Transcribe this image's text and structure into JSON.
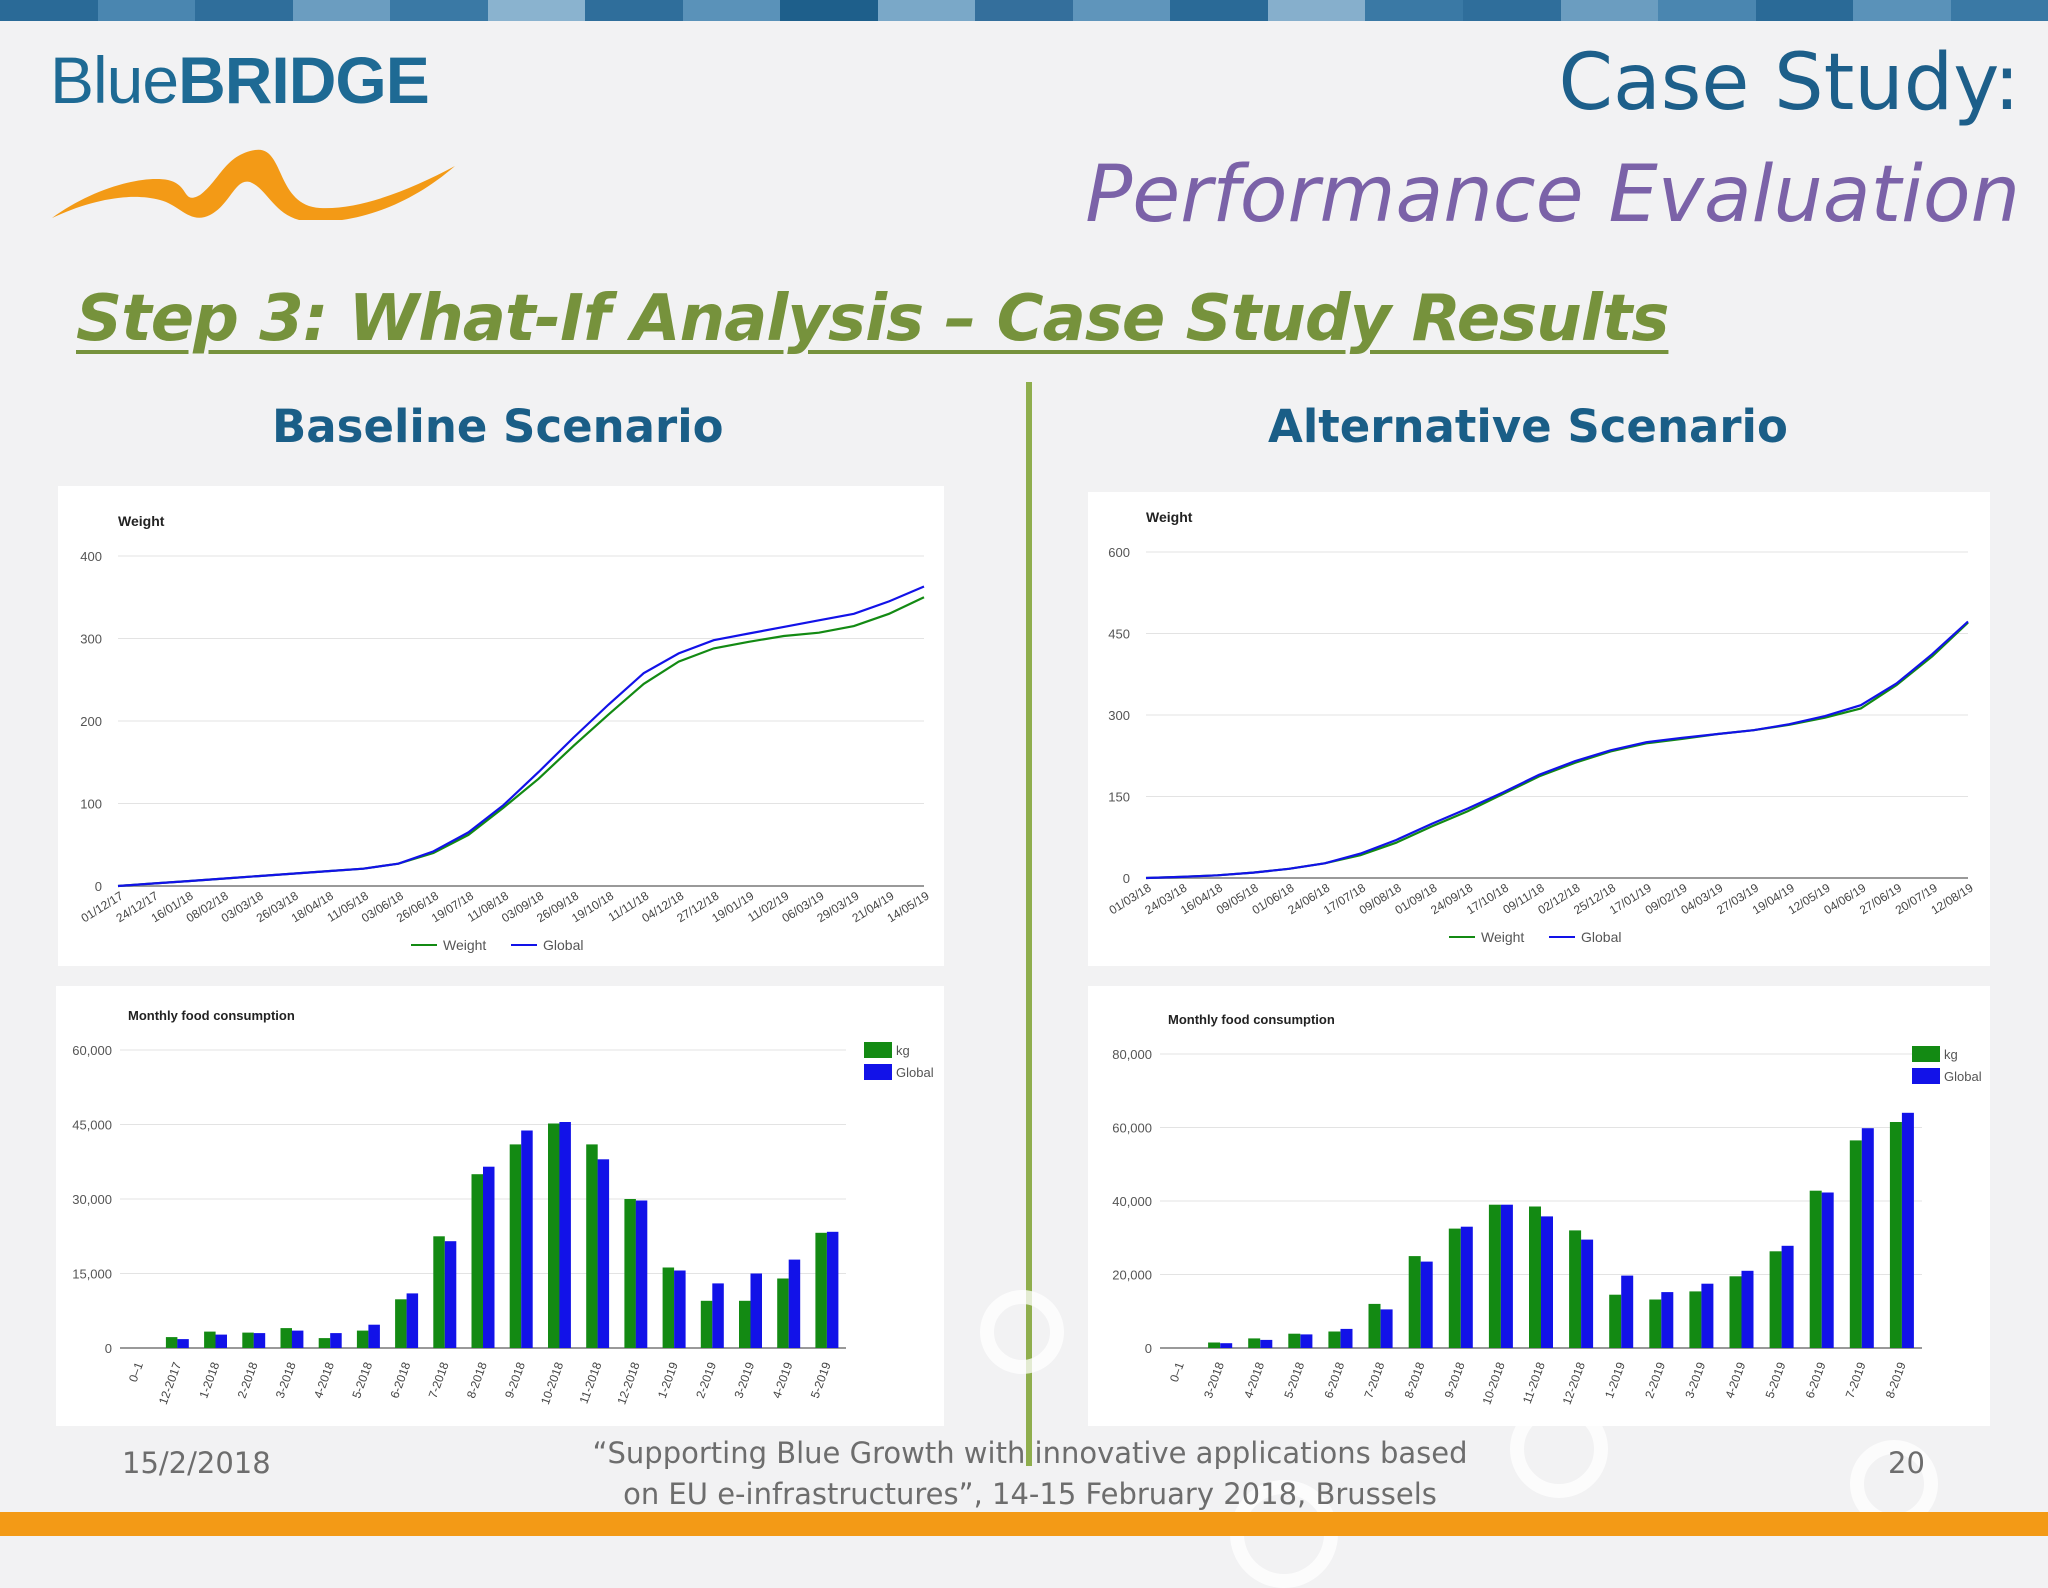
{
  "header": {
    "logo_blue": "Blue",
    "logo_bridge": "BRIDGE",
    "title_line1": "Case Study:",
    "title_line2": "Performance Evaluation",
    "step_heading": "Step 3: What-If Analysis – Case Study Results"
  },
  "scenarios": {
    "baseline": "Baseline Scenario",
    "alternative": "Alternative Scenario"
  },
  "footer": {
    "date": "15/2/2018",
    "line1": "“Supporting Blue Growth with innovative applications based",
    "line2": "on EU e-infrastructures”, 14-15 February 2018, Brussels",
    "page": "20"
  },
  "colors": {
    "title_blue": "#1d5f8a",
    "title_purple": "#7b62a8",
    "step_green": "#76923c",
    "logo_orange": "#f39a16",
    "series_green": "#138a13",
    "series_blue": "#1212e8"
  },
  "chart_data": [
    {
      "type": "line",
      "title": "Weight",
      "ylim": [
        0,
        400
      ],
      "yticks": [
        "0",
        "100",
        "200",
        "300",
        "400"
      ],
      "x": [
        "01/12/17",
        "24/12/17",
        "16/01/18",
        "08/02/18",
        "03/03/18",
        "26/03/18",
        "18/04/18",
        "11/05/18",
        "03/06/18",
        "26/06/18",
        "19/07/18",
        "11/08/18",
        "03/09/18",
        "26/09/18",
        "19/10/18",
        "11/11/18",
        "04/12/18",
        "27/12/18",
        "19/01/19",
        "11/02/19",
        "06/03/19",
        "29/03/19",
        "21/04/19",
        "14/05/19"
      ],
      "series": [
        {
          "name": "Weight",
          "color": "#138a13",
          "values": [
            0,
            3,
            6,
            9,
            12,
            15,
            18,
            21,
            27,
            40,
            62,
            95,
            130,
            170,
            208,
            245,
            272,
            288,
            296,
            303,
            307,
            315,
            330,
            350
          ]
        },
        {
          "name": "Global",
          "color": "#1212e8",
          "values": [
            0,
            3,
            6,
            9,
            12,
            15,
            18,
            21,
            27,
            42,
            65,
            98,
            138,
            180,
            220,
            258,
            282,
            298,
            306,
            314,
            322,
            330,
            345,
            363
          ]
        }
      ],
      "legend": "bottom",
      "grid": true
    },
    {
      "type": "line",
      "title": "Weight",
      "ylim": [
        0,
        600
      ],
      "yticks": [
        "0",
        "150",
        "300",
        "450",
        "600"
      ],
      "x": [
        "01/03/18",
        "24/03/18",
        "16/04/18",
        "09/05/18",
        "01/06/18",
        "24/06/18",
        "17/07/18",
        "09/08/18",
        "01/09/18",
        "24/09/18",
        "17/10/18",
        "09/11/18",
        "02/12/18",
        "25/12/18",
        "17/01/19",
        "09/02/19",
        "04/03/19",
        "27/03/19",
        "19/04/19",
        "12/05/19",
        "04/06/19",
        "27/06/19",
        "20/07/19",
        "12/08/19"
      ],
      "series": [
        {
          "name": "Weight",
          "color": "#138a13",
          "values": [
            0,
            2,
            5,
            10,
            17,
            27,
            42,
            65,
            95,
            123,
            155,
            187,
            212,
            233,
            248,
            256,
            265,
            272,
            282,
            295,
            312,
            355,
            408,
            470
          ]
        },
        {
          "name": "Global",
          "color": "#1212e8",
          "values": [
            0,
            2,
            5,
            10,
            17,
            27,
            45,
            70,
            100,
            128,
            158,
            190,
            215,
            235,
            250,
            258,
            265,
            272,
            283,
            298,
            318,
            358,
            412,
            472
          ]
        }
      ],
      "legend": "bottom",
      "grid": true
    },
    {
      "type": "bar",
      "title": "Monthly food consumption",
      "ylim": [
        0,
        60000
      ],
      "yticks": [
        "0",
        "15,000",
        "30,000",
        "45,000",
        "60,000"
      ],
      "categories": [
        "0–1",
        "12-2017",
        "1-2018",
        "2-2018",
        "3-2018",
        "4-2018",
        "5-2018",
        "6-2018",
        "7-2018",
        "8-2018",
        "9-2018",
        "10-2018",
        "11-2018",
        "12-2018",
        "1-2019",
        "2-2019",
        "3-2019",
        "4-2019",
        "5-2019"
      ],
      "series": [
        {
          "name": "kg",
          "color": "#138a13",
          "values": [
            0,
            2200,
            3300,
            3100,
            4000,
            2000,
            3500,
            9800,
            22500,
            35000,
            41000,
            45200,
            41000,
            30000,
            16200,
            9500,
            9500,
            14000,
            23200
          ]
        },
        {
          "name": "Global",
          "color": "#1212e8",
          "values": [
            0,
            1800,
            2700,
            3000,
            3500,
            3000,
            4700,
            11000,
            21500,
            36500,
            43800,
            45500,
            38000,
            29700,
            15600,
            13000,
            15000,
            17800,
            23400
          ]
        }
      ],
      "legend": "top-right",
      "grid": true
    },
    {
      "type": "bar",
      "title": "Monthly food consumption",
      "ylim": [
        0,
        80000
      ],
      "yticks": [
        "0",
        "20,000",
        "40,000",
        "60,000",
        "80,000"
      ],
      "categories": [
        "0–1",
        "3-2018",
        "4-2018",
        "5-2018",
        "6-2018",
        "7-2018",
        "8-2018",
        "9-2018",
        "10-2018",
        "11-2018",
        "12-2018",
        "1-2019",
        "2-2019",
        "3-2019",
        "4-2019",
        "5-2019",
        "6-2019",
        "7-2019",
        "8-2019"
      ],
      "series": [
        {
          "name": "kg",
          "color": "#138a13",
          "values": [
            0,
            1500,
            2600,
            3900,
            4500,
            12000,
            25000,
            32500,
            39000,
            38500,
            32000,
            14500,
            13200,
            15400,
            19500,
            26300,
            42800,
            56500,
            61500
          ]
        },
        {
          "name": "Global",
          "color": "#1212e8",
          "values": [
            0,
            1300,
            2200,
            3700,
            5200,
            10500,
            23500,
            33000,
            39000,
            35800,
            29500,
            19700,
            15200,
            17500,
            21000,
            27800,
            42300,
            59800,
            64000
          ]
        }
      ],
      "legend": "top-right",
      "grid": true
    }
  ]
}
